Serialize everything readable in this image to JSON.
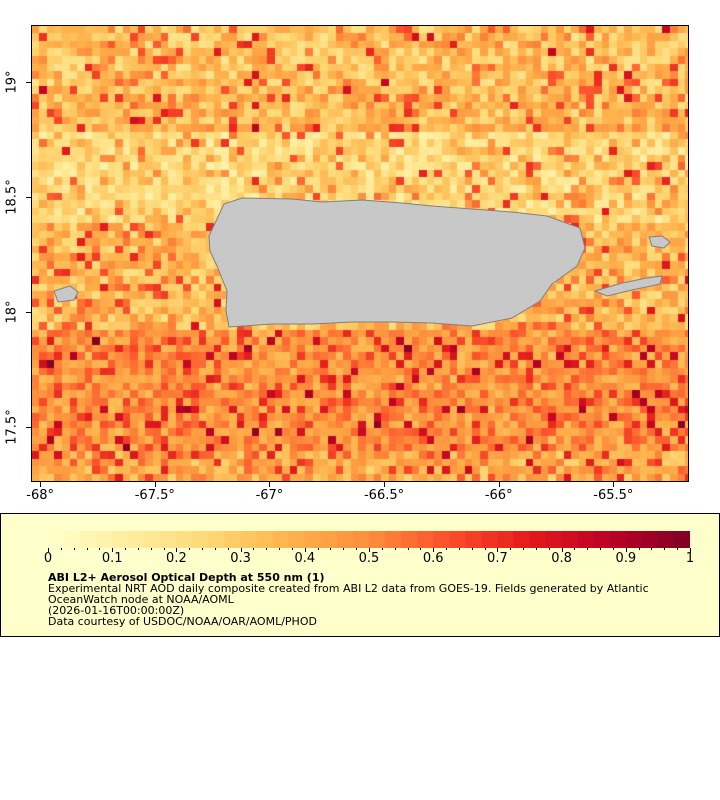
{
  "map": {
    "x_ticks": [
      "-68°",
      "-67.5°",
      "-67°",
      "-66.5°",
      "-66°",
      "-65.5°"
    ],
    "x_tick_values": [
      -68,
      -67.5,
      -67,
      -66.5,
      -66,
      -65.5
    ],
    "y_ticks": [
      "19°",
      "18.5°",
      "18°",
      "17.5°"
    ],
    "y_tick_values": [
      19,
      18.5,
      18,
      17.5
    ],
    "lon_range": [
      -68.04,
      -65.17
    ],
    "lat_range": [
      17.26,
      19.25
    ],
    "land_color": "#c8c8c8",
    "land_edge_color": "#808080"
  },
  "legend": {
    "colorbar_ticks": [
      "0",
      "0.1",
      "0.2",
      "0.3",
      "0.4",
      "0.5",
      "0.6",
      "0.7",
      "0.8",
      "0.9",
      "1"
    ],
    "colorbar_range": [
      0,
      1
    ],
    "colormap": [
      "#ffffcc",
      "#ffeda0",
      "#fed976",
      "#feb24c",
      "#fd8d3c",
      "#fc4e2a",
      "#e31a1c",
      "#bd0026",
      "#800026"
    ],
    "title": "ABI L2+ Aerosol Optical Depth at 550 nm (1)",
    "line1": "Experimental NRT AOD daily composite created from ABI L2 data from GOES-19. Fields generated by Atlantic",
    "line2": "OceanWatch node at NOAA/AOML",
    "line3": "(2026-01-16T00:00:00Z)",
    "line4": "Data courtesy of USDOC/NOAA/OAR/AOML/PHOD"
  }
}
